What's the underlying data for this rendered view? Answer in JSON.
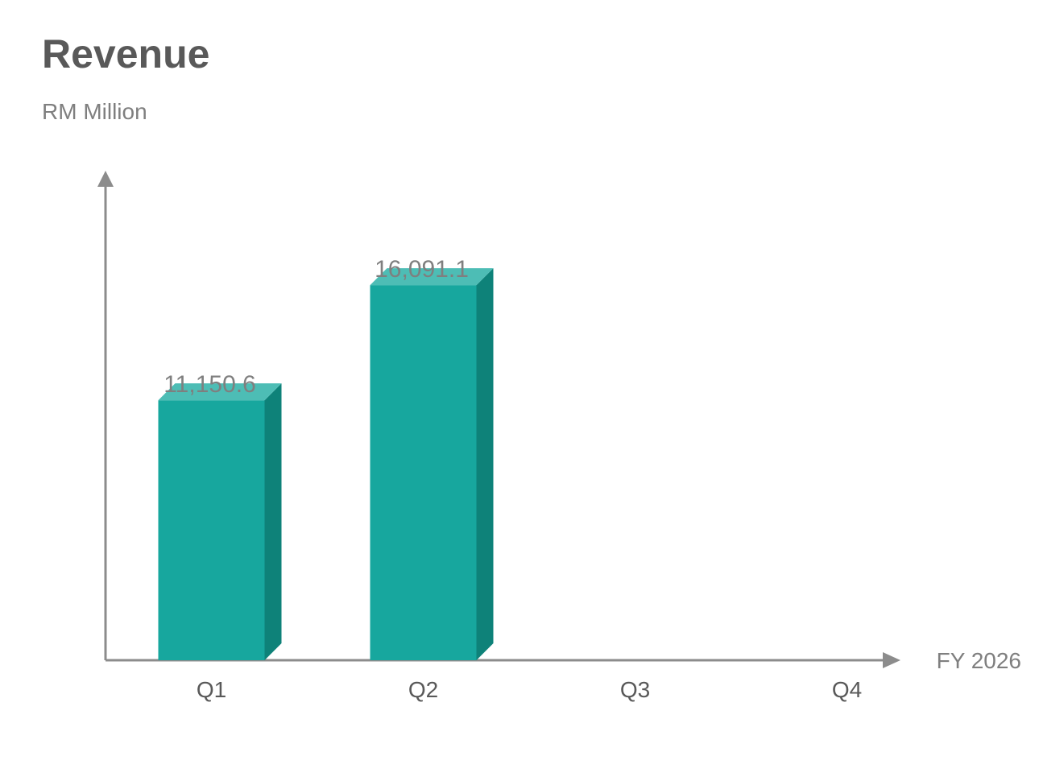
{
  "chart_data": {
    "type": "bar",
    "title": "Revenue",
    "subtitle": "RM Million",
    "xlabel": "FY 2026",
    "ylabel": "",
    "categories": [
      "Q1",
      "Q2",
      "Q3",
      "Q4"
    ],
    "values": [
      11150.6,
      16091.1,
      null,
      null
    ],
    "value_labels": [
      "11,150.6",
      "16,091.1",
      "",
      ""
    ],
    "ylim": [
      0,
      21000
    ],
    "grid": false,
    "legend": "none",
    "style": "3d-bar"
  },
  "colors": {
    "bar_front": "#17a79e",
    "bar_top": "#4dbdb5",
    "bar_side": "#0e8279",
    "axis": "#8c8c8c",
    "title_text": "#595959",
    "label_text": "#7f7f7f",
    "tick_text": "#595959"
  }
}
